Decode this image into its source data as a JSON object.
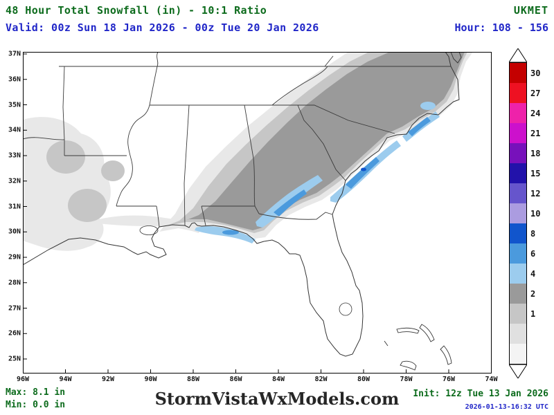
{
  "header": {
    "title": "48 Hour Total Snowfall (in) - 10:1 Ratio",
    "model": "UKMET",
    "valid": "Valid: 00z Sun 18 Jan 2026 - 00z Tue 20 Jan 2026",
    "hour": "Hour: 108 - 156"
  },
  "footer": {
    "max": "Max: 8.1 in",
    "min": "Min: 0.0 in",
    "site": "StormVistaWxModels.com",
    "init": "Init: 12z Tue 13 Jan 2026",
    "timestamp": "2026-01-13-16:32 UTC"
  },
  "axes": {
    "lat_labels": [
      "37N",
      "36N",
      "35N",
      "34N",
      "33N",
      "32N",
      "31N",
      "30N",
      "29N",
      "28N",
      "27N",
      "26N",
      "25N"
    ],
    "lon_labels": [
      "96W",
      "94W",
      "92W",
      "90W",
      "88W",
      "86W",
      "84W",
      "82W",
      "80W",
      "78W",
      "76W",
      "74W"
    ]
  },
  "colorbar": {
    "units": "in",
    "segments": [
      {
        "label": "30",
        "color": "#c40000"
      },
      {
        "label": "27",
        "color": "#ee1122"
      },
      {
        "label": "24",
        "color": "#ee22aa"
      },
      {
        "label": "21",
        "color": "#cc11cc"
      },
      {
        "label": "18",
        "color": "#7711bb"
      },
      {
        "label": "15",
        "color": "#2212aa"
      },
      {
        "label": "12",
        "color": "#6655cc"
      },
      {
        "label": "10",
        "color": "#ab9ce0"
      },
      {
        "label": "8",
        "color": "#1155cc"
      },
      {
        "label": "6",
        "color": "#4b9add"
      },
      {
        "label": "4",
        "color": "#9cccee"
      },
      {
        "label": "2",
        "color": "#9a9a9a"
      },
      {
        "label": "1",
        "color": "#c6c6c6"
      },
      {
        "label": "",
        "color": "#e0e0e0"
      },
      {
        "label": "",
        "color": "#f4f4f4"
      }
    ]
  },
  "colors": {
    "title_green": "#0c6b1c",
    "info_blue": "#2026c8",
    "snow_trace": "#e8e8e8",
    "snow_1in": "#c6c6c6",
    "snow_2in": "#9a9a9a",
    "snow_4in": "#9cccee",
    "snow_6in": "#4b9add",
    "snow_8in": "#1155cc"
  }
}
